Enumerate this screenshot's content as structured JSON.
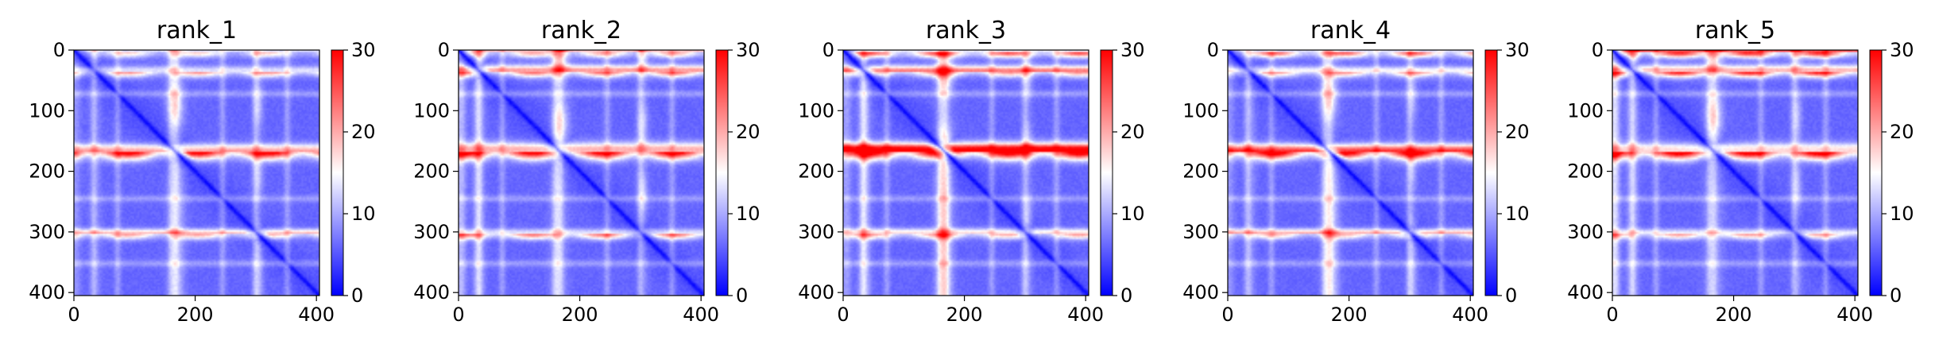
{
  "chart_data": [
    {
      "type": "heatmap",
      "title": "rank_1",
      "xlim": [
        0,
        405
      ],
      "ylim": [
        405,
        0
      ],
      "xticks": [
        "0",
        "200",
        "400"
      ],
      "yticks": [
        "0",
        "100",
        "200",
        "300",
        "400"
      ],
      "colorbar": {
        "range": [
          0,
          30
        ],
        "ticks": [
          "0",
          "10",
          "20",
          "30"
        ],
        "colors": [
          "#0000ff",
          "#ffffff",
          "#ff0000"
        ]
      },
      "hotspots": [
        {
          "rows": [
            0,
            8
          ],
          "intensity": 0.45
        },
        {
          "rows": [
            30,
            40
          ],
          "intensity": 0.55
        },
        {
          "rows": [
            160,
            175
          ],
          "intensity": 0.9
        },
        {
          "rows": [
            300,
            308
          ],
          "intensity": 0.5
        }
      ]
    },
    {
      "type": "heatmap",
      "title": "rank_2",
      "xlim": [
        0,
        405
      ],
      "ylim": [
        405,
        0
      ],
      "xticks": [
        "0",
        "200",
        "400"
      ],
      "yticks": [
        "0",
        "100",
        "200",
        "300",
        "400"
      ],
      "colorbar": {
        "range": [
          0,
          30
        ],
        "ticks": [
          "0",
          "10",
          "20",
          "30"
        ],
        "colors": [
          "#0000ff",
          "#ffffff",
          "#ff0000"
        ]
      },
      "hotspots": [
        {
          "rows": [
            0,
            8
          ],
          "intensity": 0.55
        },
        {
          "rows": [
            30,
            40
          ],
          "intensity": 0.65
        },
        {
          "rows": [
            160,
            175
          ],
          "intensity": 0.9
        },
        {
          "rows": [
            300,
            308
          ],
          "intensity": 0.6
        }
      ]
    },
    {
      "type": "heatmap",
      "title": "rank_3",
      "xlim": [
        0,
        405
      ],
      "ylim": [
        405,
        0
      ],
      "xticks": [
        "0",
        "200",
        "400"
      ],
      "yticks": [
        "0",
        "100",
        "200",
        "300",
        "400"
      ],
      "colorbar": {
        "range": [
          0,
          30
        ],
        "ticks": [
          "0",
          "10",
          "20",
          "30"
        ],
        "colors": [
          "#0000ff",
          "#ffffff",
          "#ff0000"
        ]
      },
      "hotspots": [
        {
          "rows": [
            0,
            8
          ],
          "intensity": 0.75
        },
        {
          "rows": [
            30,
            40
          ],
          "intensity": 0.55
        },
        {
          "rows": [
            160,
            175
          ],
          "intensity": 0.95
        },
        {
          "rows": [
            300,
            308
          ],
          "intensity": 0.5
        }
      ]
    },
    {
      "type": "heatmap",
      "title": "rank_4",
      "xlim": [
        0,
        405
      ],
      "ylim": [
        405,
        0
      ],
      "xticks": [
        "0",
        "200",
        "400"
      ],
      "yticks": [
        "0",
        "100",
        "200",
        "300",
        "400"
      ],
      "colorbar": {
        "range": [
          0,
          30
        ],
        "ticks": [
          "0",
          "10",
          "20",
          "30"
        ],
        "colors": [
          "#0000ff",
          "#ffffff",
          "#ff0000"
        ]
      },
      "hotspots": [
        {
          "rows": [
            0,
            8
          ],
          "intensity": 0.7
        },
        {
          "rows": [
            30,
            40
          ],
          "intensity": 0.55
        },
        {
          "rows": [
            160,
            175
          ],
          "intensity": 0.95
        },
        {
          "rows": [
            300,
            308
          ],
          "intensity": 0.45
        }
      ]
    },
    {
      "type": "heatmap",
      "title": "rank_5",
      "xlim": [
        0,
        405
      ],
      "ylim": [
        405,
        0
      ],
      "xticks": [
        "0",
        "200",
        "400"
      ],
      "yticks": [
        "0",
        "100",
        "200",
        "300",
        "400"
      ],
      "colorbar": {
        "range": [
          0,
          30
        ],
        "ticks": [
          "0",
          "10",
          "20",
          "30"
        ],
        "colors": [
          "#0000ff",
          "#ffffff",
          "#ff0000"
        ]
      },
      "hotspots": [
        {
          "rows": [
            0,
            8
          ],
          "intensity": 0.85
        },
        {
          "rows": [
            30,
            40
          ],
          "intensity": 0.85
        },
        {
          "rows": [
            160,
            175
          ],
          "intensity": 0.95
        },
        {
          "rows": [
            300,
            308
          ],
          "intensity": 0.5
        }
      ]
    }
  ]
}
